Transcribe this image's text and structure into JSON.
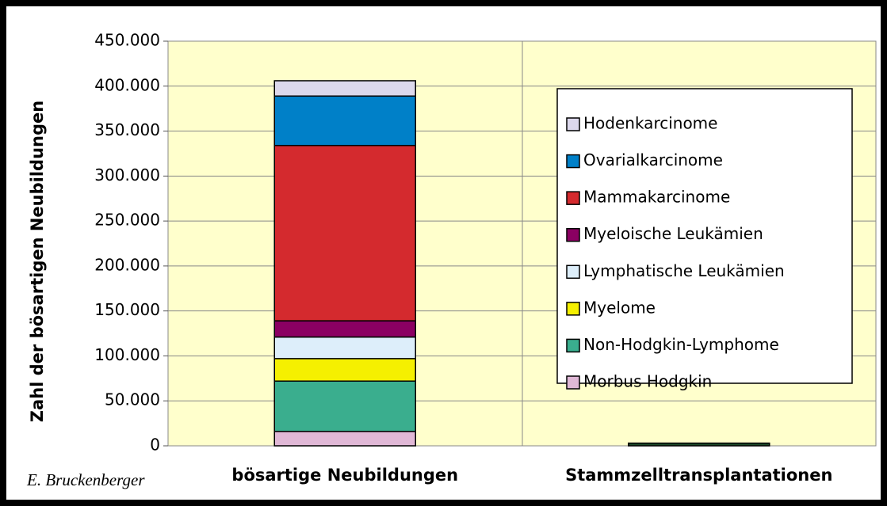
{
  "chart_data": {
    "type": "stacked_bar",
    "y_label": "Zahl der bösartigen  Neubildungen",
    "author": "E. Bruckenberger",
    "categories": [
      "bösartige Neubildungen",
      "Stammzelltransplantationen"
    ],
    "ylim": [
      0,
      450000
    ],
    "yticks": [
      0,
      {
        "value": 50000,
        "label": "50.000"
      },
      {
        "value": 100000,
        "label": "100.000"
      },
      {
        "value": 150000,
        "label": "150.000"
      },
      {
        "value": 200000,
        "label": "200.000"
      },
      {
        "value": 250000,
        "label": "250.000"
      },
      {
        "value": 300000,
        "label": "300.000"
      },
      {
        "value": 350000,
        "label": "350.000"
      },
      {
        "value": 400000,
        "label": "400.000"
      },
      {
        "value": 450000,
        "label": "450.000"
      }
    ],
    "grid": true,
    "legend": "right",
    "series": [
      {
        "name": "Morbus Hodgkin",
        "color": "#e0b8d6",
        "values": [
          16000,
          null
        ]
      },
      {
        "name": "Non-Hodgkin-Lymphome",
        "color": "#3aae8e",
        "values": [
          56000,
          null
        ]
      },
      {
        "name": "Myelome",
        "color": "#f5f000",
        "values": [
          25000,
          null
        ]
      },
      {
        "name": "Lymphatische Leukämien",
        "color": "#ddeefa",
        "values": [
          24000,
          null
        ]
      },
      {
        "name": "Myeloische Leukämien",
        "color": "#8b0062",
        "values": [
          18000,
          null
        ]
      },
      {
        "name": "Mammakarcinome",
        "color": "#d42a2e",
        "values": [
          195000,
          null
        ]
      },
      {
        "name": "Ovarialkarcinome",
        "color": "#0080c8",
        "values": [
          55000,
          null
        ]
      },
      {
        "name": "Hodenkarcinome",
        "color": "#dcd8ec",
        "values": [
          17000,
          null
        ]
      },
      {
        "color": "#1d4a2a",
        "values": [
          null,
          3000
        ]
      }
    ]
  }
}
